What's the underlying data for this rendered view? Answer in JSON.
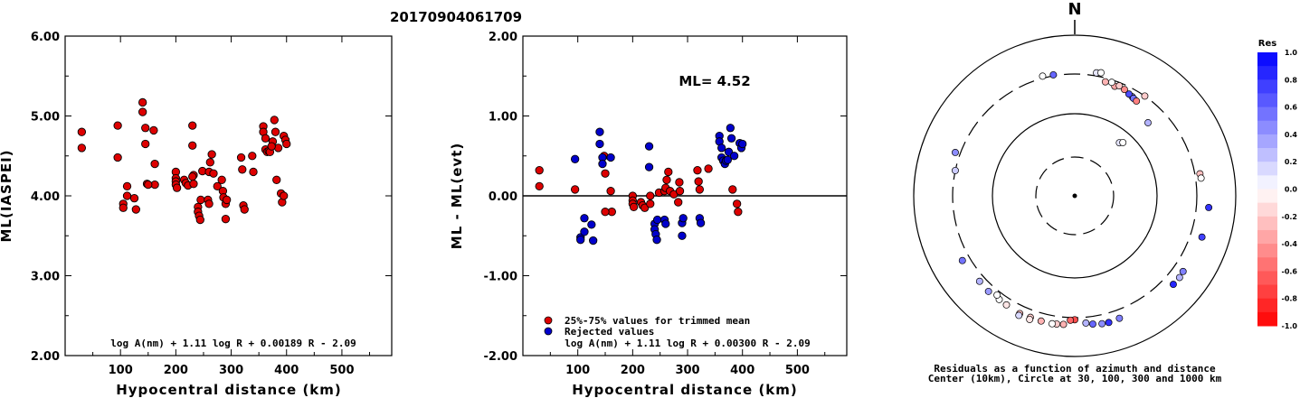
{
  "event_id": "20170904061709",
  "chart_data": [
    {
      "type": "scatter",
      "xlabel": "Hypocentral distance (km)",
      "ylabel": "ML(IASPEI)",
      "xlim": [
        0,
        590
      ],
      "ylim": [
        2.0,
        6.0
      ],
      "xticks": [
        "100",
        "200",
        "300",
        "400",
        "500"
      ],
      "yticks": [
        "2.00",
        "3.00",
        "4.00",
        "5.00",
        "6.00"
      ],
      "formula": "log A(nm) + 1.11 log R + 0.00189 R - 2.09",
      "point_color": "#dd0000",
      "points": [
        [
          30,
          4.8
        ],
        [
          30,
          4.6
        ],
        [
          95,
          4.88
        ],
        [
          95,
          4.48
        ],
        [
          105,
          3.9
        ],
        [
          105,
          3.85
        ],
        [
          112,
          4.12
        ],
        [
          112,
          4.0
        ],
        [
          125,
          3.97
        ],
        [
          128,
          3.83
        ],
        [
          140,
          5.17
        ],
        [
          140,
          5.05
        ],
        [
          145,
          4.85
        ],
        [
          145,
          4.65
        ],
        [
          148,
          4.15
        ],
        [
          160,
          4.82
        ],
        [
          162,
          4.4
        ],
        [
          162,
          4.14
        ],
        [
          150,
          4.14
        ],
        [
          200,
          4.3
        ],
        [
          200,
          4.22
        ],
        [
          200,
          4.18
        ],
        [
          200,
          4.14
        ],
        [
          202,
          4.1
        ],
        [
          215,
          4.2
        ],
        [
          218,
          4.16
        ],
        [
          222,
          4.13
        ],
        [
          230,
          4.88
        ],
        [
          230,
          4.63
        ],
        [
          232,
          4.26
        ],
        [
          230,
          4.24
        ],
        [
          232,
          4.15
        ],
        [
          240,
          3.86
        ],
        [
          240,
          3.8
        ],
        [
          242,
          3.75
        ],
        [
          244,
          3.7
        ],
        [
          245,
          3.95
        ],
        [
          248,
          4.31
        ],
        [
          260,
          4.3
        ],
        [
          262,
          4.42
        ],
        [
          265,
          4.52
        ],
        [
          268,
          4.28
        ],
        [
          258,
          3.95
        ],
        [
          260,
          3.9
        ],
        [
          275,
          4.12
        ],
        [
          283,
          4.2
        ],
        [
          285,
          4.06
        ],
        [
          286,
          3.98
        ],
        [
          290,
          3.9
        ],
        [
          290,
          3.71
        ],
        [
          292,
          3.95
        ],
        [
          318,
          4.48
        ],
        [
          320,
          4.33
        ],
        [
          322,
          3.88
        ],
        [
          324,
          3.83
        ],
        [
          338,
          4.5
        ],
        [
          340,
          4.3
        ],
        [
          358,
          4.87
        ],
        [
          358,
          4.8
        ],
        [
          362,
          4.72
        ],
        [
          362,
          4.58
        ],
        [
          365,
          4.55
        ],
        [
          368,
          4.56
        ],
        [
          370,
          4.55
        ],
        [
          375,
          4.68
        ],
        [
          378,
          4.95
        ],
        [
          380,
          4.8
        ],
        [
          382,
          4.2
        ],
        [
          385,
          4.6
        ],
        [
          390,
          4.03
        ],
        [
          392,
          3.92
        ],
        [
          395,
          4.75
        ],
        [
          398,
          4.7
        ],
        [
          400,
          4.65
        ],
        [
          395,
          4.0
        ],
        [
          373,
          4.62
        ]
      ]
    },
    {
      "type": "scatter",
      "xlabel": "Hypocentral distance (km)",
      "ylabel": "ML - ML(evt)",
      "xlim": [
        0,
        590
      ],
      "ylim": [
        -2.0,
        2.0
      ],
      "xticks": [
        "100",
        "200",
        "300",
        "400",
        "500"
      ],
      "yticks": [
        "-2.00",
        "-1.00",
        "0.00",
        "1.00",
        "2.00"
      ],
      "annotation": "ML=  4.52",
      "formula": "log A(nm) + 1.11 log R + 0.00300 R - 2.09",
      "legend": [
        {
          "label": "25%-75% values for trimmed mean",
          "color": "#dd0000"
        },
        {
          "label": "Rejected values",
          "color": "#0000cc"
        }
      ],
      "used": [
        [
          30,
          0.32
        ],
        [
          30,
          0.12
        ],
        [
          95,
          0.08
        ],
        [
          148,
          0.5
        ],
        [
          150,
          0.28
        ],
        [
          160,
          0.06
        ],
        [
          162,
          -0.2
        ],
        [
          150,
          -0.2
        ],
        [
          200,
          0.0
        ],
        [
          200,
          -0.06
        ],
        [
          200,
          -0.1
        ],
        [
          202,
          -0.14
        ],
        [
          215,
          -0.08
        ],
        [
          218,
          -0.12
        ],
        [
          222,
          -0.15
        ],
        [
          232,
          0.0
        ],
        [
          232,
          -0.1
        ],
        [
          248,
          0.04
        ],
        [
          258,
          0.06
        ],
        [
          260,
          0.1
        ],
        [
          262,
          0.2
        ],
        [
          265,
          0.3
        ],
        [
          268,
          0.06
        ],
        [
          275,
          0.02
        ],
        [
          283,
          -0.08
        ],
        [
          285,
          0.17
        ],
        [
          286,
          0.06
        ],
        [
          318,
          0.32
        ],
        [
          320,
          0.18
        ],
        [
          322,
          0.08
        ],
        [
          338,
          0.34
        ],
        [
          382,
          0.08
        ],
        [
          390,
          -0.1
        ],
        [
          392,
          -0.2
        ]
      ],
      "rejected": [
        [
          95,
          0.46
        ],
        [
          105,
          -0.52
        ],
        [
          105,
          -0.55
        ],
        [
          112,
          -0.28
        ],
        [
          112,
          -0.45
        ],
        [
          125,
          -0.36
        ],
        [
          128,
          -0.56
        ],
        [
          140,
          0.8
        ],
        [
          140,
          0.65
        ],
        [
          145,
          0.48
        ],
        [
          145,
          0.4
        ],
        [
          160,
          0.48
        ],
        [
          230,
          0.62
        ],
        [
          230,
          0.36
        ],
        [
          240,
          -0.35
        ],
        [
          240,
          -0.42
        ],
        [
          242,
          -0.48
        ],
        [
          244,
          -0.55
        ],
        [
          245,
          -0.3
        ],
        [
          258,
          -0.3
        ],
        [
          260,
          -0.35
        ],
        [
          290,
          -0.34
        ],
        [
          290,
          -0.5
        ],
        [
          292,
          -0.28
        ],
        [
          322,
          -0.28
        ],
        [
          324,
          -0.34
        ],
        [
          358,
          0.75
        ],
        [
          358,
          0.68
        ],
        [
          362,
          0.6
        ],
        [
          362,
          0.48
        ],
        [
          365,
          0.44
        ],
        [
          368,
          0.4
        ],
        [
          370,
          0.44
        ],
        [
          373,
          0.45
        ],
        [
          375,
          0.55
        ],
        [
          378,
          0.85
        ],
        [
          380,
          0.72
        ],
        [
          385,
          0.5
        ],
        [
          395,
          0.66
        ],
        [
          398,
          0.6
        ],
        [
          400,
          0.65
        ]
      ]
    },
    {
      "type": "scatter",
      "subtype": "polar",
      "north_label": "N",
      "caption_line1": "Residuals as a function of azimuth and distance",
      "caption_line2": "Center (10km), Circle at 30, 100, 300 and 1000 km",
      "colorbar_title": "Res",
      "colorbar_ticks": [
        "1.0",
        "0.8",
        "0.6",
        "0.4",
        "0.2",
        "0.0",
        "-0.2",
        "-0.4",
        "-0.6",
        "-0.8",
        "-1.0"
      ],
      "rings_km": [
        30,
        100,
        300,
        1000
      ],
      "points": [
        {
          "az": 10,
          "dist": 330,
          "res": 0.1
        },
        {
          "az": 12,
          "dist": 340,
          "res": 0.0
        },
        {
          "az": 35,
          "dist": 300,
          "res": -0.2
        },
        {
          "az": 30,
          "dist": 245,
          "res": 0.45
        },
        {
          "az": 350,
          "dist": 310,
          "res": 0.6
        },
        {
          "az": 345,
          "dist": 320,
          "res": 0.0
        },
        {
          "az": 20,
          "dist": 260,
          "res": -0.35
        },
        {
          "az": 22,
          "dist": 275,
          "res": -0.2
        },
        {
          "az": 25,
          "dist": 265,
          "res": -0.45
        },
        {
          "az": 18,
          "dist": 280,
          "res": 0.0
        },
        {
          "az": 15,
          "dist": 270,
          "res": -0.3
        },
        {
          "az": 28,
          "dist": 250,
          "res": 0.7
        },
        {
          "az": 31,
          "dist": 240,
          "res": 0.55
        },
        {
          "az": 33,
          "dist": 235,
          "res": -0.5
        },
        {
          "az": 45,
          "dist": 180,
          "res": 0.3
        },
        {
          "az": 40,
          "dist": 70,
          "res": 0.1
        },
        {
          "az": 42,
          "dist": 75,
          "res": 0.0
        },
        {
          "az": 80,
          "dist": 350,
          "res": -0.25
        },
        {
          "az": 82,
          "dist": 355,
          "res": 0.0
        },
        {
          "az": 95,
          "dist": 440,
          "res": 0.8
        },
        {
          "az": 108,
          "dist": 430,
          "res": 0.75
        },
        {
          "az": 125,
          "dist": 410,
          "res": 0.5
        },
        {
          "az": 128,
          "dist": 420,
          "res": 0.3
        },
        {
          "az": 132,
          "dist": 415,
          "res": 0.85
        },
        {
          "az": 160,
          "dist": 390,
          "res": 0.5
        },
        {
          "az": 165,
          "dist": 400,
          "res": 0.8
        },
        {
          "az": 168,
          "dist": 395,
          "res": 0.45
        },
        {
          "az": 172,
          "dist": 380,
          "res": 0.6
        },
        {
          "az": 175,
          "dist": 360,
          "res": 0.3
        },
        {
          "az": 180,
          "dist": 320,
          "res": -0.7
        },
        {
          "az": 182,
          "dist": 325,
          "res": -0.6
        },
        {
          "az": 185,
          "dist": 375,
          "res": -0.3
        },
        {
          "az": 188,
          "dist": 380,
          "res": -0.2
        },
        {
          "az": 190,
          "dist": 385,
          "res": 0.0
        },
        {
          "az": 195,
          "dist": 382,
          "res": -0.3
        },
        {
          "az": 200,
          "dist": 378,
          "res": -0.2
        },
        {
          "az": 205,
          "dist": 385,
          "res": -0.25
        },
        {
          "az": 212,
          "dist": 370,
          "res": -0.1
        },
        {
          "az": 216,
          "dist": 365,
          "res": 0.0
        },
        {
          "az": 218,
          "dist": 340,
          "res": 0.0
        },
        {
          "az": 222,
          "dist": 370,
          "res": 0.4
        },
        {
          "az": 228,
          "dist": 360,
          "res": 0.3
        },
        {
          "az": 240,
          "dist": 380,
          "res": 0.55
        },
        {
          "az": 282,
          "dist": 300,
          "res": 0.2
        },
        {
          "az": 290,
          "dist": 350,
          "res": 0.45
        },
        {
          "az": 205,
          "dist": 410,
          "res": 0.15
        },
        {
          "az": 200,
          "dist": 405,
          "res": -0.1
        }
      ]
    }
  ]
}
